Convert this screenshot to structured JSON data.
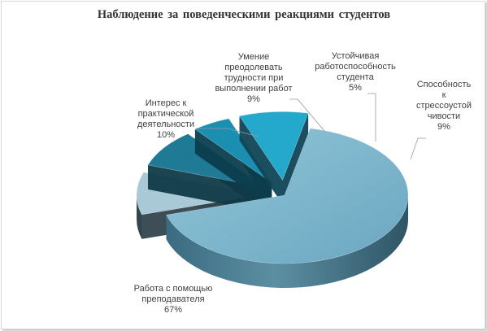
{
  "chart_data": {
    "type": "pie",
    "title": "Наблюдение  за поведенческими  реакциями студентов",
    "three_d": true,
    "exploded": true,
    "slices": [
      {
        "name": "Работа с помощью преподавателя",
        "value": 67,
        "pct": "67%",
        "label_lines": [
          "Работа с помощью",
          "преподавателя"
        ]
      },
      {
        "name": "Интерес к практической деятельности",
        "value": 10,
        "pct": "10%",
        "label_lines": [
          "Интерес к",
          "практической",
          "деятельности"
        ]
      },
      {
        "name": "Умение преодолевать трудности при выполнении работ",
        "value": 9,
        "pct": "9%",
        "label_lines": [
          "Умение",
          "преодолевать",
          "трудности при",
          "выполнении работ"
        ]
      },
      {
        "name": "Устойчивая работоспособность студента",
        "value": 5,
        "pct": "5%",
        "label_lines": [
          "Устойчивая",
          "работоспособность",
          "студента"
        ]
      },
      {
        "name": "Способность к стрессоустойчивости",
        "value": 9,
        "pct": "9%",
        "label_lines": [
          "Способность",
          "к",
          "стрессоустой",
          "чивости"
        ]
      }
    ],
    "colors": {
      "large_top": "#7bb7cf",
      "large_side": "#3d6a7d",
      "interest_top": "#a9c9d6",
      "interest_side": "#34454d",
      "skills_top": "#1f7a95",
      "skills_side": "#103a48",
      "stable_top": "#1a8fb0",
      "stable_side": "#0c3d4c",
      "stress_top": "#24a9cc",
      "stress_side": "#0f4556"
    }
  }
}
